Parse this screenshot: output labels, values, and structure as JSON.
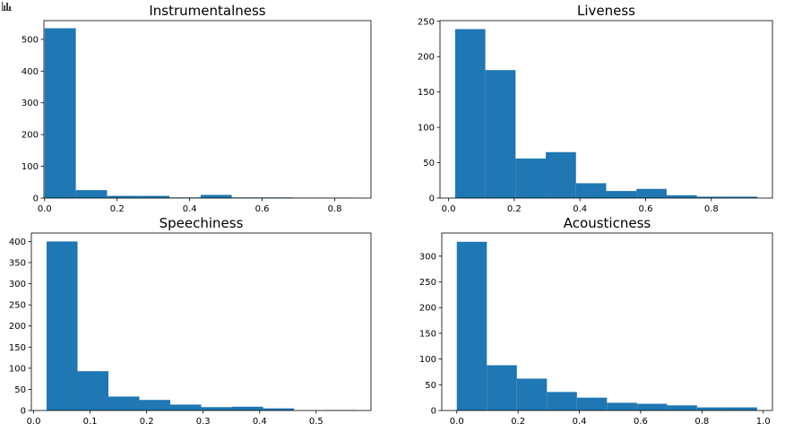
{
  "chart_data": [
    {
      "type": "histogram",
      "title": "Instrumentalness",
      "color": "#1f77b4",
      "bins": [
        0,
        0.086,
        0.172,
        0.258,
        0.344,
        0.43,
        0.516,
        0.602,
        0.688,
        0.774,
        0.86
      ],
      "values": [
        535,
        25,
        7,
        7,
        2,
        10,
        2,
        2,
        1,
        1
      ],
      "xlim": [
        -0.002,
        0.9
      ],
      "ylim": [
        0,
        559
      ],
      "xticks": [
        {
          "value": 0,
          "label": "0.0"
        },
        0.2,
        0.4,
        0.6,
        0.8
      ],
      "yticks": [
        0,
        100,
        200,
        300,
        400,
        500
      ]
    },
    {
      "type": "histogram",
      "title": "Liveness",
      "color": "#1f77b4",
      "bins": [
        0.02,
        0.112,
        0.204,
        0.296,
        0.388,
        0.48,
        0.572,
        0.664,
        0.756,
        0.848,
        0.94
      ],
      "values": [
        239,
        181,
        56,
        65,
        21,
        10,
        13,
        4,
        2,
        2
      ],
      "xlim": [
        -0.026,
        0.986
      ],
      "ylim": [
        0,
        251
      ],
      "xticks": [
        {
          "value": 0,
          "label": "0.0"
        },
        0.2,
        0.4,
        0.6,
        0.8
      ],
      "yticks": [
        0,
        50,
        100,
        150,
        200,
        250
      ]
    },
    {
      "type": "histogram",
      "title": "Speechiness",
      "color": "#1f77b4",
      "bins": [
        0.023,
        0.0777,
        0.1324,
        0.1871,
        0.2418,
        0.2965,
        0.3512,
        0.4059,
        0.4606,
        0.5153,
        0.57
      ],
      "values": [
        400,
        93,
        33,
        25,
        14,
        8,
        9,
        5,
        0,
        1
      ],
      "xlim": [
        -0.004,
        0.597
      ],
      "ylim": [
        0,
        420
      ],
      "xticks": [
        {
          "value": 0,
          "label": "0.0"
        },
        0.1,
        0.2,
        0.3,
        0.4,
        0.5
      ],
      "yticks": [
        0,
        50,
        100,
        150,
        200,
        250,
        300,
        350,
        400
      ]
    },
    {
      "type": "histogram",
      "title": "Acousticness",
      "color": "#1f77b4",
      "bins": [
        0,
        0.098,
        0.196,
        0.294,
        0.392,
        0.49,
        0.588,
        0.686,
        0.784,
        0.882,
        0.98
      ],
      "values": [
        328,
        88,
        62,
        36,
        25,
        15,
        13,
        10,
        6,
        6
      ],
      "xlim": [
        -0.049,
        1.03
      ],
      "ylim": [
        0,
        345
      ],
      "xticks": [
        {
          "value": 0,
          "label": "0.0"
        },
        0.2,
        0.4,
        0.6,
        0.8,
        {
          "value": 1,
          "label": "1.0"
        }
      ],
      "yticks": [
        0,
        50,
        100,
        150,
        200,
        250,
        300
      ]
    }
  ]
}
